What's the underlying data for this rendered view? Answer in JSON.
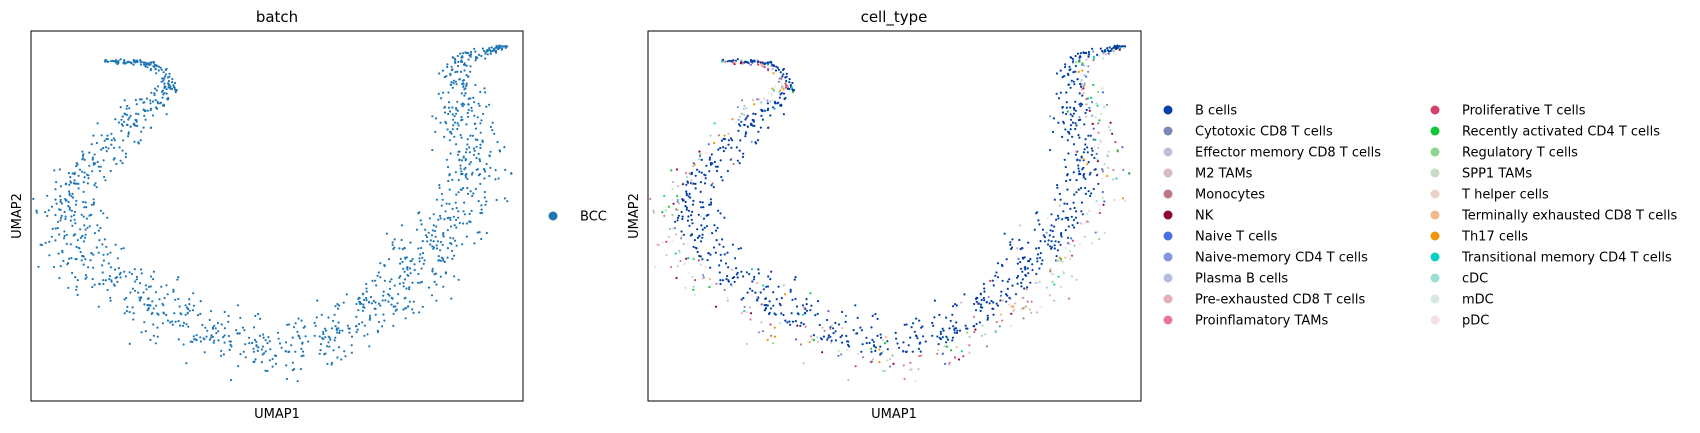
{
  "chart_data": [
    {
      "type": "scatter",
      "title": "batch",
      "xlabel": "UMAP1",
      "ylabel": "UMAP2",
      "grid": false,
      "ticks": false,
      "legend_placement": "right",
      "legend": [
        {
          "name": "BCC",
          "color": "#1f77b4"
        }
      ],
      "point_color": "#1f77b4"
    },
    {
      "type": "scatter",
      "title": "cell_type",
      "xlabel": "UMAP1",
      "ylabel": "UMAP2",
      "grid": false,
      "ticks": false,
      "legend_placement": "right",
      "dominant_category": "B cells",
      "legend": [
        {
          "name": "B cells",
          "color": "#023fa5"
        },
        {
          "name": "Cytotoxic CD8 T cells",
          "color": "#7d87b9"
        },
        {
          "name": "Effector memory CD8 T cells",
          "color": "#bec1d4"
        },
        {
          "name": "M2 TAMs",
          "color": "#d6bcc0"
        },
        {
          "name": "Monocytes",
          "color": "#bb7784"
        },
        {
          "name": "NK",
          "color": "#8e063b"
        },
        {
          "name": "Naive T cells",
          "color": "#4a6fe3"
        },
        {
          "name": "Naive-memory CD4 T cells",
          "color": "#8595e1"
        },
        {
          "name": "Plasma B cells",
          "color": "#b5bbe3"
        },
        {
          "name": "Pre-exhausted CD8 T cells",
          "color": "#e6afb9"
        },
        {
          "name": "Proinflamatory TAMs",
          "color": "#e07b91"
        },
        {
          "name": "Proliferative T cells",
          "color": "#d33f6a"
        },
        {
          "name": "Recently activated CD4 T cells",
          "color": "#11c638"
        },
        {
          "name": "Regulatory T cells",
          "color": "#8dd593"
        },
        {
          "name": "SPP1 TAMs",
          "color": "#c6dec7"
        },
        {
          "name": "T helper cells",
          "color": "#ead3c6"
        },
        {
          "name": "Terminally exhausted CD8 T cells",
          "color": "#f0b98d"
        },
        {
          "name": "Th17 cells",
          "color": "#ef9708"
        },
        {
          "name": "Transitional memory CD4 T cells",
          "color": "#0fcfc0"
        },
        {
          "name": "cDC",
          "color": "#9cded6"
        },
        {
          "name": "mDC",
          "color": "#d5eae7"
        },
        {
          "name": "pDC",
          "color": "#f3e1eb"
        }
      ]
    }
  ]
}
